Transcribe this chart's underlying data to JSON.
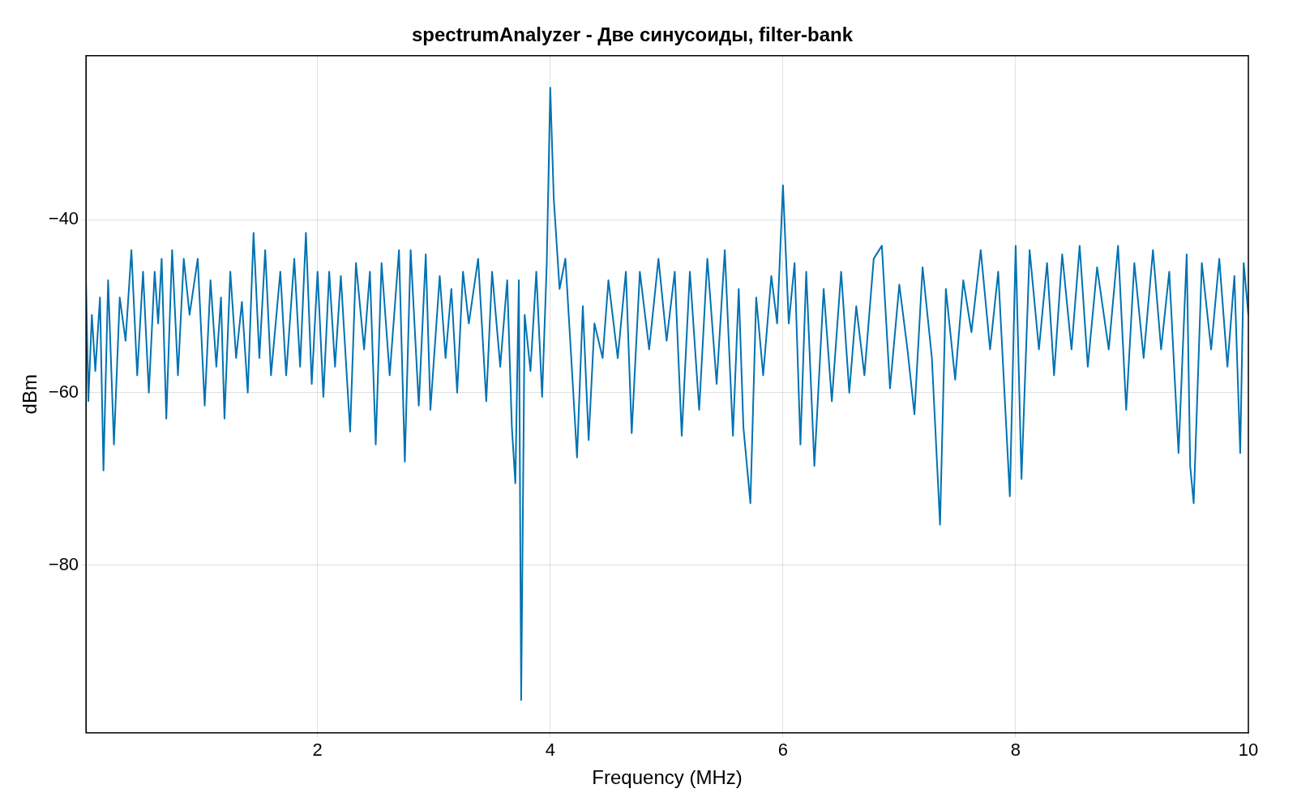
{
  "chart_data": {
    "type": "line",
    "title": "spectrumAnalyzer - Две синусоиды, filter-bank",
    "xlabel": "Frequency (MHz)",
    "ylabel": "dBm",
    "xlim": [
      0.01,
      10
    ],
    "ylim": [
      -99.4,
      -21
    ],
    "xticks": [
      2,
      4,
      6,
      8,
      10
    ],
    "yticks": [
      -80,
      -60,
      -40
    ],
    "grid": true,
    "legend": false,
    "marker": "none",
    "line_style": "solid",
    "series": [
      {
        "color": "#0072b2",
        "x": [
          0.01,
          0.03,
          0.06,
          0.09,
          0.13,
          0.16,
          0.2,
          0.25,
          0.3,
          0.35,
          0.4,
          0.45,
          0.5,
          0.55,
          0.6,
          0.63,
          0.66,
          0.7,
          0.75,
          0.8,
          0.85,
          0.9,
          0.97,
          1.03,
          1.08,
          1.13,
          1.17,
          1.2,
          1.25,
          1.3,
          1.35,
          1.4,
          1.45,
          1.5,
          1.55,
          1.6,
          1.68,
          1.73,
          1.8,
          1.85,
          1.9,
          1.95,
          2.0,
          2.05,
          2.1,
          2.15,
          2.2,
          2.28,
          2.33,
          2.4,
          2.45,
          2.5,
          2.55,
          2.62,
          2.7,
          2.75,
          2.8,
          2.87,
          2.93,
          2.97,
          3.05,
          3.1,
          3.15,
          3.2,
          3.25,
          3.3,
          3.38,
          3.45,
          3.5,
          3.57,
          3.63,
          3.67,
          3.7,
          3.73,
          3.75,
          3.78,
          3.83,
          3.88,
          3.93,
          3.97,
          4.0,
          4.03,
          4.08,
          4.13,
          4.2,
          4.23,
          4.28,
          4.33,
          4.38,
          4.45,
          4.5,
          4.58,
          4.65,
          4.7,
          4.77,
          4.85,
          4.93,
          5.0,
          5.07,
          5.13,
          5.2,
          5.28,
          5.35,
          5.43,
          5.5,
          5.57,
          5.62,
          5.66,
          5.72,
          5.77,
          5.83,
          5.9,
          5.95,
          6.0,
          6.05,
          6.1,
          6.15,
          6.2,
          6.27,
          6.35,
          6.42,
          6.5,
          6.57,
          6.63,
          6.7,
          6.78,
          6.85,
          6.92,
          7.0,
          7.07,
          7.13,
          7.2,
          7.28,
          7.35,
          7.4,
          7.48,
          7.55,
          7.62,
          7.7,
          7.78,
          7.85,
          7.9,
          7.95,
          8.0,
          8.05,
          8.12,
          8.2,
          8.27,
          8.33,
          8.4,
          8.48,
          8.55,
          8.62,
          8.7,
          8.8,
          8.88,
          8.95,
          9.02,
          9.1,
          9.18,
          9.25,
          9.32,
          9.4,
          9.47,
          9.5,
          9.53,
          9.6,
          9.68,
          9.75,
          9.82,
          9.88,
          9.93,
          9.96,
          10.0
        ],
        "values": [
          -47,
          -61,
          -51,
          -57.5,
          -49,
          -69,
          -47,
          -66,
          -49,
          -54,
          -43.5,
          -58,
          -46,
          -60,
          -46,
          -52,
          -44.5,
          -63,
          -43.5,
          -58,
          -44.5,
          -51,
          -44.5,
          -61.5,
          -47,
          -57,
          -49,
          -63,
          -46,
          -56,
          -49.5,
          -60,
          -41.5,
          -56,
          -43.5,
          -58,
          -46,
          -58,
          -44.5,
          -57,
          -41.5,
          -59,
          -46,
          -60.5,
          -46,
          -57,
          -46.5,
          -64.5,
          -45,
          -55,
          -46,
          -66,
          -45,
          -58,
          -43.5,
          -68,
          -43.5,
          -61.5,
          -44,
          -62,
          -46.5,
          -56,
          -48,
          -60,
          -46,
          -52,
          -44.5,
          -61,
          -46,
          -57,
          -47,
          -64,
          -70.5,
          -47,
          -95.6,
          -51,
          -57.5,
          -46,
          -60.5,
          -45,
          -24.7,
          -37.5,
          -48,
          -44.5,
          -60.5,
          -67.5,
          -50,
          -65.5,
          -52,
          -56,
          -47,
          -56,
          -46,
          -64.7,
          -46,
          -55,
          -44.5,
          -54,
          -46,
          -65,
          -46,
          -62,
          -44.5,
          -59,
          -43.5,
          -65,
          -48,
          -64,
          -72.8,
          -49,
          -58,
          -46.5,
          -52,
          -36,
          -52,
          -45,
          -66,
          -46,
          -68.5,
          -48,
          -61,
          -46,
          -60,
          -50,
          -58,
          -44.5,
          -43,
          -59.5,
          -47.5,
          -55,
          -62.5,
          -45.5,
          -56,
          -75.3,
          -48,
          -58.5,
          -47,
          -53,
          -43.5,
          -55,
          -46,
          -59,
          -72,
          -43,
          -70,
          -43.5,
          -55,
          -45,
          -58,
          -44,
          -55,
          -43,
          -57,
          -45.5,
          -55,
          -43,
          -62,
          -45,
          -56,
          -43.5,
          -55,
          -46,
          -67,
          -44,
          -68.5,
          -72.8,
          -45,
          -55,
          -44.5,
          -57,
          -46.5,
          -67,
          -45,
          -51
        ]
      }
    ]
  }
}
